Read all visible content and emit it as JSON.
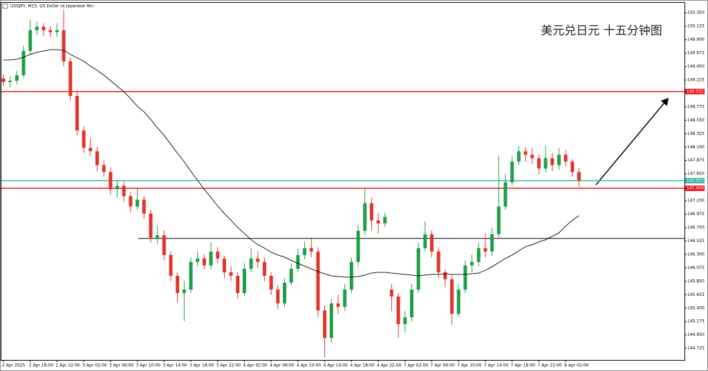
{
  "chart_data": {
    "type": "candlestick",
    "header": "USDJPY, M15: US Dollar vs Japanese Yen",
    "title": "美元兑日元 十五分钟图",
    "categories": [
      "2 Apr 2025",
      null,
      null,
      null,
      "2 Apr 18:00",
      null,
      null,
      null,
      "2 Apr 22:00",
      null,
      null,
      null,
      "3 Apr 02:00",
      null,
      null,
      null,
      "3 Apr 06:00",
      null,
      null,
      null,
      "3 Apr 10:00",
      null,
      null,
      null,
      "3 Apr 14:00",
      null,
      null,
      null,
      "3 Apr 18:00",
      null,
      null,
      null,
      "3 Apr 22:00",
      null,
      null,
      null,
      "4 Apr 02:00",
      null,
      null,
      null,
      "4 Apr 06:00",
      null,
      null,
      null,
      "4 Apr 10:00",
      null,
      null,
      null,
      "4 Apr 14:00",
      null,
      null,
      null,
      "4 Apr 18:00",
      null,
      null,
      null,
      "4 Apr 22:00",
      null,
      null,
      null,
      "7 Apr 02:00",
      null,
      null,
      null,
      "7 Apr 06:00",
      null,
      null,
      null,
      "7 Apr 10:00",
      null,
      null,
      null,
      "7 Apr 14:00",
      null,
      null,
      null,
      "7 Apr 18:00",
      null,
      null,
      null,
      "7 Apr 22:00",
      null,
      null,
      null,
      "8 Apr 02:00",
      null,
      null
    ],
    "open": [
      149.25,
      149.19,
      149.213,
      149.306,
      149.712,
      150.06,
      150.118,
      150.06,
      150.025,
      150.06,
      149.538,
      148.958,
      148.378,
      148.088,
      148.03,
      147.798,
      147.682,
      147.392,
      147.45,
      147.276,
      147.102,
      147.218,
      146.986,
      146.58,
      146.62,
      146.29,
      145.942,
      145.652,
      145.71,
      146.174,
      146.232,
      146.116,
      146.348,
      146.232,
      146.0,
      145.942,
      145.652,
      146.058,
      146.232,
      146.174,
      145.942,
      145.71,
      145.478,
      145.826,
      146.058,
      146.29,
      146.406,
      146.348,
      145.362,
      144.898,
      145.478,
      145.42,
      145.71,
      146.174,
      146.696,
      147.16,
      146.87,
      146.82,
      145.71,
      145.594,
      145.13,
      145.246,
      145.71,
      146.406,
      146.638,
      146.348,
      146.0,
      145.884,
      145.304,
      145.71,
      146.116,
      146.174,
      146.406,
      146.348,
      146.638,
      147.102,
      147.508,
      147.856,
      148.03,
      147.972,
      147.914,
      147.74,
      147.914,
      147.798,
      147.972,
      147.856,
      147.682
    ],
    "high": [
      149.32,
      149.29,
      149.38,
      149.8,
      150.23,
      150.2,
      150.18,
      150.13,
      150.18,
      150.408,
      149.6,
      149.02,
      148.45,
      148.25,
      148.1,
      147.88,
      147.76,
      147.55,
      147.52,
      147.35,
      147.42,
      147.28,
      147.05,
      146.78,
      146.7,
      146.35,
      146.0,
      145.85,
      146.25,
      146.35,
      146.3,
      146.5,
      146.42,
      146.28,
      146.1,
      146.0,
      146.15,
      146.4,
      146.35,
      146.25,
      146.0,
      145.78,
      145.9,
      146.15,
      146.4,
      146.52,
      146.58,
      146.42,
      145.45,
      145.55,
      145.62,
      145.8,
      146.25,
      146.8,
      147.4,
      147.25,
      147.0,
      147.0,
      145.8,
      145.65,
      145.35,
      145.8,
      146.5,
      146.85,
      146.7,
      146.42,
      146.05,
      145.95,
      145.8,
      146.2,
      146.3,
      146.5,
      146.65,
      146.75,
      147.95,
      147.65,
      147.95,
      148.12,
      148.1,
      148.08,
      147.98,
      148.12,
      148.0,
      148.08,
      148.05,
      147.9,
      147.75
    ],
    "low": [
      149.12,
      149.1,
      149.15,
      149.26,
      149.65,
      149.98,
      149.96,
      149.94,
      149.95,
      149.45,
      148.88,
      148.3,
      148.0,
      147.95,
      147.7,
      147.6,
      147.3,
      147.25,
      147.18,
      147.0,
      147.05,
      146.9,
      146.5,
      146.48,
      146.2,
      145.85,
      145.5,
      145.18,
      145.65,
      146.1,
      146.05,
      146.05,
      146.15,
      145.9,
      145.85,
      145.55,
      145.6,
      146.0,
      146.08,
      145.85,
      145.62,
      145.38,
      145.42,
      145.78,
      146.0,
      146.22,
      146.25,
      145.25,
      144.573,
      144.82,
      145.3,
      145.35,
      145.65,
      146.1,
      146.62,
      146.7,
      146.65,
      146.76,
      145.35,
      144.9,
      145.0,
      145.18,
      145.65,
      146.35,
      146.25,
      145.9,
      145.75,
      145.12,
      145.25,
      145.65,
      146.0,
      146.1,
      146.25,
      146.28,
      146.58,
      147.05,
      147.45,
      147.8,
      147.85,
      147.82,
      147.65,
      147.68,
      147.7,
      147.72,
      147.78,
      147.6,
      147.43
    ],
    "close": [
      149.19,
      149.213,
      149.306,
      149.712,
      150.06,
      150.118,
      150.06,
      150.025,
      150.06,
      149.538,
      148.958,
      148.378,
      148.088,
      148.03,
      147.798,
      147.682,
      147.392,
      147.45,
      147.276,
      147.102,
      147.218,
      146.986,
      146.58,
      146.62,
      146.29,
      145.942,
      145.652,
      145.71,
      146.174,
      146.232,
      146.116,
      146.348,
      146.232,
      146.0,
      145.942,
      145.652,
      146.058,
      146.232,
      146.174,
      145.942,
      145.71,
      145.478,
      145.826,
      146.058,
      146.29,
      146.406,
      146.348,
      145.362,
      144.898,
      145.478,
      145.42,
      145.71,
      146.174,
      146.696,
      147.16,
      146.87,
      146.82,
      146.928,
      145.594,
      145.13,
      145.246,
      145.71,
      146.406,
      146.638,
      146.348,
      146.0,
      145.884,
      145.304,
      145.71,
      146.116,
      146.174,
      146.406,
      146.348,
      146.638,
      147.102,
      147.508,
      147.856,
      148.03,
      147.972,
      147.914,
      147.74,
      147.914,
      147.798,
      147.972,
      147.856,
      147.682,
      147.537
    ],
    "up_color": "#1f9e4a",
    "down_color": "#e2342b",
    "series": [
      {
        "color": "#000000",
        "values": [
          149.561,
          149.561,
          149.573,
          149.608,
          149.654,
          149.689,
          149.712,
          149.735,
          149.735,
          149.724,
          149.654,
          149.596,
          149.538,
          149.457,
          149.387,
          149.306,
          149.213,
          149.12,
          149.028,
          148.912,
          148.784,
          148.691,
          148.564,
          148.424,
          148.297,
          148.146,
          147.995,
          147.856,
          147.694,
          147.543,
          147.392,
          147.253,
          147.114,
          146.986,
          146.87,
          146.754,
          146.65,
          146.545,
          146.464,
          146.406,
          146.336,
          146.29,
          146.255,
          146.197,
          146.151,
          146.104,
          146.058,
          146.012,
          145.977,
          145.942,
          145.93,
          145.919,
          145.919,
          145.93,
          145.954,
          145.988,
          146.0,
          146.0,
          145.988,
          145.977,
          145.965,
          145.954,
          145.942,
          145.954,
          145.965,
          145.965,
          145.977,
          145.965,
          145.965,
          145.965,
          145.977,
          145.988,
          146.035,
          146.093,
          146.162,
          146.232,
          146.29,
          146.36,
          146.429,
          146.464,
          146.51,
          146.545,
          146.603,
          146.661,
          146.777,
          146.87,
          146.951
        ]
      }
    ],
    "levels": [
      {
        "value": 149.031,
        "color": "#e8141b"
      },
      {
        "value": 147.537,
        "color": "#3fb6a8"
      },
      {
        "value": 147.409,
        "color": "#e8141b"
      },
      {
        "value": 146.568,
        "color": "#000000"
      }
    ],
    "ylim": [
      144.53,
      150.52
    ],
    "yticks": [
      {
        "value": 150.35,
        "label": "150.350"
      },
      150.125,
      {
        "value": 149.9,
        "label": "149.900"
      },
      149.675,
      {
        "value": 149.45,
        "label": "149.450"
      },
      149.225,
      148.775,
      {
        "value": 148.55,
        "label": "148.550"
      },
      148.325,
      {
        "value": 148.1,
        "label": "148.100"
      },
      147.875,
      {
        "value": 147.65,
        "label": "147.650"
      },
      {
        "value": 147.2,
        "label": "147.200"
      },
      146.975,
      {
        "value": 146.75,
        "label": "146.750"
      },
      146.525,
      {
        "value": 146.3,
        "label": "146.300"
      },
      146.075,
      {
        "value": 145.85,
        "label": "145.850"
      },
      145.625,
      {
        "value": 145.4,
        "label": "145.400"
      },
      145.175,
      {
        "value": 144.95,
        "label": "144.950"
      },
      144.725
    ]
  }
}
